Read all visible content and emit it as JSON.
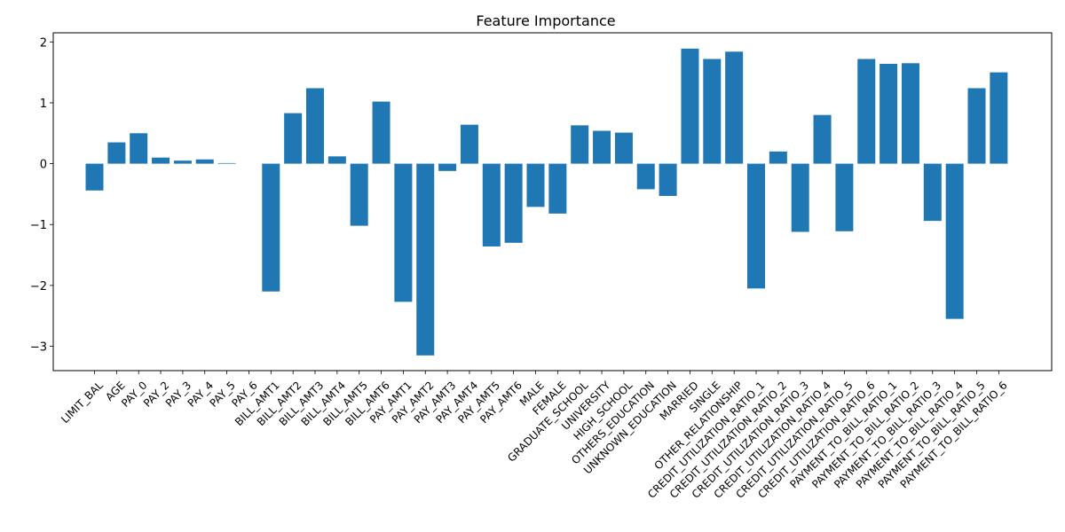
{
  "chart_data": {
    "type": "bar",
    "title": "Feature Importance",
    "xlabel": "",
    "ylabel": "",
    "ylim": [
      -3.4,
      2.15
    ],
    "yticks": [
      -3,
      -2,
      -1,
      0,
      1,
      2
    ],
    "bar_color": "#1f77b4",
    "grid": false,
    "categories": [
      "LIMIT_BAL",
      "AGE",
      "PAY_0",
      "PAY_2",
      "PAY_3",
      "PAY_4",
      "PAY_5",
      "PAY_6",
      "BILL_AMT1",
      "BILL_AMT2",
      "BILL_AMT3",
      "BILL_AMT4",
      "BILL_AMT5",
      "BILL_AMT6",
      "PAY_AMT1",
      "PAY_AMT2",
      "PAY_AMT3",
      "PAY_AMT4",
      "PAY_AMT5",
      "PAY_AMT6",
      "MALE",
      "FEMALE",
      "GRADUATE_SCHOOL",
      "UNIVERSITY",
      "HIGH_SCHOOL",
      "OTHERS_EDUCATION",
      "UNKNOWN_EDUCATION",
      "MARRIED",
      "SINGLE",
      "OTHER_RELATIONSHIP",
      "CREDIT_UTILIZATION_RATIO_1",
      "CREDIT_UTILIZATION_RATIO_2",
      "CREDIT_UTILIZATION_RATIO_3",
      "CREDIT_UTILIZATION_RATIO_4",
      "CREDIT_UTILIZATION_RATIO_5",
      "CREDIT_UTILIZATION_RATIO_6",
      "PAYMENT_TO_BILL_RATIO_1",
      "PAYMENT_TO_BILL_RATIO_2",
      "PAYMENT_TO_BILL_RATIO_3",
      "PAYMENT_TO_BILL_RATIO_4",
      "PAYMENT_TO_BILL_RATIO_5",
      "PAYMENT_TO_BILL_RATIO_6"
    ],
    "values": [
      -0.44,
      0.35,
      0.5,
      0.1,
      0.05,
      0.07,
      0.01,
      0.0,
      -2.1,
      0.83,
      1.24,
      0.12,
      -1.02,
      1.02,
      -2.27,
      -3.15,
      -0.12,
      0.64,
      -1.36,
      -1.3,
      -0.71,
      -0.82,
      0.63,
      0.54,
      0.51,
      -0.42,
      -0.53,
      1.89,
      1.72,
      1.84,
      -2.05,
      0.2,
      -1.12,
      0.8,
      -1.11,
      1.72,
      1.64,
      1.65,
      -0.94,
      -2.55,
      1.24,
      1.5
    ]
  }
}
